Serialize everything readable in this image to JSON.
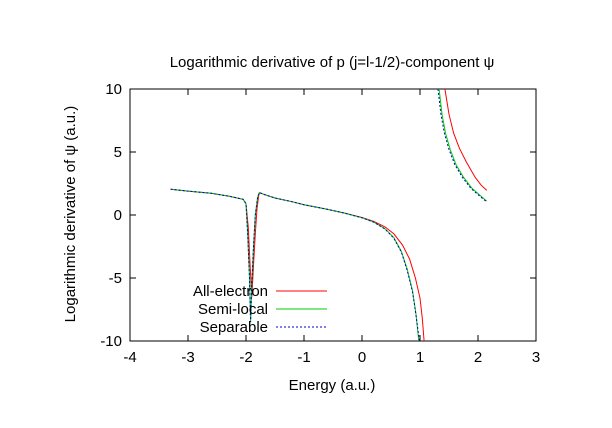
{
  "chart_data": {
    "type": "line",
    "title": "Logarithmic derivative of p (j=l-1/2)-component ψ",
    "xlabel": "Energy (a.u.)",
    "ylabel": "Logarithmic derivative of ψ (a.u.)",
    "xlim": [
      -4,
      3
    ],
    "ylim": [
      -10,
      10
    ],
    "xticks": [
      -4,
      -3,
      -2,
      -1,
      0,
      1,
      2,
      3
    ],
    "yticks": [
      -10,
      -5,
      0,
      5,
      10
    ],
    "grid": false,
    "legend_position": "bottom-left",
    "series": [
      {
        "name": "All-electron",
        "color": "#ff0000",
        "dash": "",
        "segments": [
          [
            [
              -3.3,
              2.05
            ],
            [
              -3.0,
              1.9
            ],
            [
              -2.6,
              1.72
            ],
            [
              -2.3,
              1.5
            ],
            [
              -2.05,
              1.25
            ],
            [
              -2.0,
              0.9
            ],
            [
              -1.96,
              -1.0
            ],
            [
              -1.93,
              -4.0
            ],
            [
              -1.9,
              -6.5
            ],
            [
              -1.87,
              -4.0
            ],
            [
              -1.84,
              -1.5
            ],
            [
              -1.81,
              0.5
            ],
            [
              -1.78,
              1.6
            ],
            [
              -1.76,
              1.78
            ],
            [
              -1.7,
              1.65
            ],
            [
              -1.5,
              1.35
            ],
            [
              -1.2,
              1.05
            ],
            [
              -1.0,
              0.82
            ],
            [
              -0.6,
              0.45
            ],
            [
              -0.3,
              0.15
            ],
            [
              0.0,
              -0.2
            ],
            [
              0.2,
              -0.5
            ],
            [
              0.4,
              -0.95
            ],
            [
              0.55,
              -1.5
            ],
            [
              0.7,
              -2.4
            ],
            [
              0.82,
              -3.5
            ],
            [
              0.92,
              -5.0
            ],
            [
              1.0,
              -6.6
            ],
            [
              1.04,
              -8.2
            ],
            [
              1.07,
              -10
            ]
          ],
          [
            [
              1.43,
              10
            ],
            [
              1.5,
              8.0
            ],
            [
              1.58,
              6.5
            ],
            [
              1.68,
              5.3
            ],
            [
              1.8,
              4.2
            ],
            [
              1.95,
              3.0
            ],
            [
              2.05,
              2.4
            ],
            [
              2.15,
              1.95
            ]
          ]
        ]
      },
      {
        "name": "Semi-local",
        "color": "#00cc00",
        "dash": "",
        "segments": [
          [
            [
              -3.3,
              2.05
            ],
            [
              -3.0,
              1.9
            ],
            [
              -2.6,
              1.72
            ],
            [
              -2.3,
              1.5
            ],
            [
              -2.05,
              1.25
            ],
            [
              -2.0,
              0.9
            ],
            [
              -1.97,
              -1.5
            ],
            [
              -1.94,
              -5.0
            ],
            [
              -1.92,
              -8.5
            ],
            [
              -1.9,
              -5.5
            ],
            [
              -1.87,
              -2.5
            ],
            [
              -1.84,
              0.0
            ],
            [
              -1.8,
              1.4
            ],
            [
              -1.77,
              1.78
            ],
            [
              -1.7,
              1.65
            ],
            [
              -1.5,
              1.35
            ],
            [
              -1.2,
              1.05
            ],
            [
              -1.0,
              0.82
            ],
            [
              -0.6,
              0.45
            ],
            [
              -0.3,
              0.15
            ],
            [
              0.0,
              -0.22
            ],
            [
              0.2,
              -0.55
            ],
            [
              0.4,
              -1.1
            ],
            [
              0.55,
              -1.8
            ],
            [
              0.68,
              -2.9
            ],
            [
              0.78,
              -4.3
            ],
            [
              0.87,
              -6.0
            ],
            [
              0.93,
              -7.8
            ],
            [
              0.98,
              -10
            ]
          ],
          [
            [
              1.33,
              10
            ],
            [
              1.38,
              8.0
            ],
            [
              1.44,
              6.5
            ],
            [
              1.52,
              5.2
            ],
            [
              1.62,
              4.0
            ],
            [
              1.75,
              3.0
            ],
            [
              1.9,
              2.1
            ],
            [
              2.05,
              1.5
            ],
            [
              2.15,
              1.1
            ]
          ]
        ]
      },
      {
        "name": "Separable",
        "color": "#0000cc",
        "dash": "2,2",
        "segments": [
          [
            [
              -3.3,
              2.05
            ],
            [
              -3.0,
              1.9
            ],
            [
              -2.6,
              1.72
            ],
            [
              -2.3,
              1.5
            ],
            [
              -2.05,
              1.25
            ],
            [
              -2.0,
              0.9
            ],
            [
              -1.97,
              -1.5
            ],
            [
              -1.94,
              -5.0
            ],
            [
              -1.92,
              -8.5
            ],
            [
              -1.9,
              -5.5
            ],
            [
              -1.87,
              -2.5
            ],
            [
              -1.84,
              0.0
            ],
            [
              -1.8,
              1.4
            ],
            [
              -1.77,
              1.78
            ],
            [
              -1.7,
              1.65
            ],
            [
              -1.5,
              1.35
            ],
            [
              -1.2,
              1.05
            ],
            [
              -1.0,
              0.82
            ],
            [
              -0.6,
              0.45
            ],
            [
              -0.3,
              0.15
            ],
            [
              0.0,
              -0.22
            ],
            [
              0.2,
              -0.56
            ],
            [
              0.4,
              -1.12
            ],
            [
              0.55,
              -1.85
            ],
            [
              0.68,
              -2.95
            ],
            [
              0.78,
              -4.4
            ],
            [
              0.87,
              -6.1
            ],
            [
              0.93,
              -7.9
            ],
            [
              0.99,
              -10
            ]
          ],
          [
            [
              1.31,
              10
            ],
            [
              1.36,
              8.0
            ],
            [
              1.42,
              6.5
            ],
            [
              1.5,
              5.2
            ],
            [
              1.6,
              4.0
            ],
            [
              1.73,
              3.0
            ],
            [
              1.88,
              2.1
            ],
            [
              2.03,
              1.5
            ],
            [
              2.15,
              1.05
            ]
          ]
        ]
      }
    ]
  }
}
